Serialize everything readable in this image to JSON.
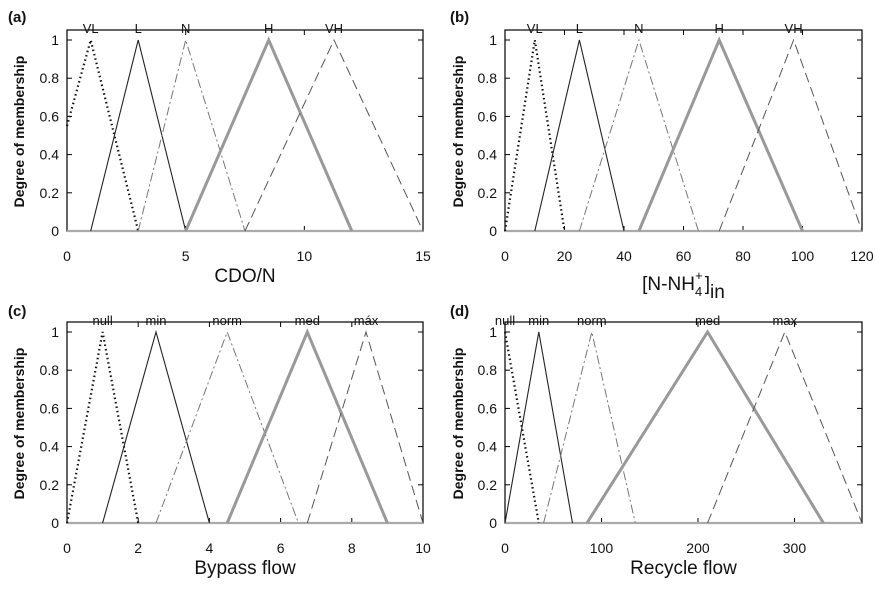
{
  "chart_data": [
    {
      "type": "line",
      "panel_label": "(a)",
      "xlabel": "CDO/N",
      "ylabel": "Degree of membership",
      "xlim": [
        0,
        15
      ],
      "ylim": [
        0,
        1
      ],
      "xticks": [
        "0",
        "5",
        "10",
        "15"
      ],
      "yticks": [
        "0",
        "0.2",
        "0.4",
        "0.6",
        "0.8",
        "1"
      ],
      "series": [
        {
          "name": "VL",
          "style": "dotted",
          "x": [
            0,
            1,
            3
          ],
          "y": [
            0.55,
            1,
            0
          ]
        },
        {
          "name": "L",
          "style": "solid-thin",
          "x": [
            1,
            3,
            5
          ],
          "y": [
            0,
            1,
            0
          ]
        },
        {
          "name": "N",
          "style": "dashdot",
          "x": [
            3,
            5,
            7.5
          ],
          "y": [
            0,
            1,
            0
          ]
        },
        {
          "name": "H",
          "style": "solid-thick",
          "x": [
            5,
            8.5,
            12
          ],
          "y": [
            0,
            1,
            0
          ]
        },
        {
          "name": "VH",
          "style": "dashed",
          "x": [
            7.5,
            11.25,
            15
          ],
          "y": [
            0,
            1,
            0
          ]
        }
      ]
    },
    {
      "type": "line",
      "panel_label": "(b)",
      "xlabel": "[N-NH4+]in",
      "xlabel_parts": {
        "main": "[N-NH",
        "sub": "4",
        "sup": "+",
        "close": "]",
        "subscript": "in"
      },
      "ylabel": "Degree of membership",
      "xlim": [
        0,
        120
      ],
      "ylim": [
        0,
        1
      ],
      "xticks": [
        "0",
        "20",
        "40",
        "60",
        "80",
        "100",
        "120"
      ],
      "yticks": [
        "0",
        "0.2",
        "0.4",
        "0.6",
        "0.8",
        "1"
      ],
      "series": [
        {
          "name": "VL",
          "style": "dotted",
          "x": [
            0,
            10,
            20
          ],
          "y": [
            0,
            1,
            0
          ]
        },
        {
          "name": "L",
          "style": "solid-thin",
          "x": [
            10,
            25,
            40
          ],
          "y": [
            0,
            1,
            0
          ]
        },
        {
          "name": "N",
          "style": "dashdot",
          "x": [
            25,
            45,
            65
          ],
          "y": [
            0,
            1,
            0
          ]
        },
        {
          "name": "H",
          "style": "solid-thick",
          "x": [
            45,
            72,
            100
          ],
          "y": [
            0,
            1,
            0
          ]
        },
        {
          "name": "VH",
          "style": "dashed",
          "x": [
            72,
            97,
            120
          ],
          "y": [
            0,
            1,
            0
          ]
        }
      ]
    },
    {
      "type": "line",
      "panel_label": "(c)",
      "xlabel": "Bypass  flow",
      "ylabel": "Degree of membership",
      "xlim": [
        0,
        10
      ],
      "ylim": [
        0,
        1
      ],
      "xticks": [
        "0",
        "2",
        "4",
        "6",
        "8",
        "10"
      ],
      "yticks": [
        "0",
        "0.2",
        "0.4",
        "0.6",
        "0.8",
        "1"
      ],
      "series": [
        {
          "name": "null",
          "style": "dotted",
          "x": [
            0,
            1,
            2
          ],
          "y": [
            0,
            1,
            0
          ]
        },
        {
          "name": "min",
          "style": "solid-thin",
          "x": [
            1,
            2.5,
            4
          ],
          "y": [
            0,
            1,
            0
          ]
        },
        {
          "name": "norm",
          "style": "dashdot",
          "x": [
            2.5,
            4.5,
            6.5
          ],
          "y": [
            0,
            1,
            0
          ]
        },
        {
          "name": "med",
          "style": "solid-thick",
          "x": [
            4.5,
            6.75,
            9
          ],
          "y": [
            0,
            1,
            0
          ]
        },
        {
          "name": "máx",
          "style": "dashed",
          "x": [
            6.75,
            8.4,
            10
          ],
          "y": [
            0,
            1,
            0
          ]
        }
      ]
    },
    {
      "type": "line",
      "panel_label": "(d)",
      "xlabel": "Recycle flow",
      "ylabel": "Degree of membership",
      "xlim": [
        0,
        370
      ],
      "ylim": [
        0,
        1
      ],
      "xticks": [
        "0",
        "100",
        "200",
        "300"
      ],
      "yticks": [
        "0",
        "0.2",
        "0.4",
        "0.6",
        "0.8",
        "1"
      ],
      "series": [
        {
          "name": "null",
          "style": "dotted",
          "x": [
            0,
            35
          ],
          "y": [
            1,
            0
          ]
        },
        {
          "name": "min",
          "style": "solid-thin",
          "x": [
            0,
            35,
            70
          ],
          "y": [
            0,
            1,
            0
          ]
        },
        {
          "name": "norm",
          "style": "dashdot",
          "x": [
            40,
            90,
            135
          ],
          "y": [
            0,
            1,
            0
          ]
        },
        {
          "name": "med",
          "style": "solid-thick",
          "x": [
            85,
            210,
            330
          ],
          "y": [
            0,
            1,
            0
          ]
        },
        {
          "name": "max",
          "style": "dashed",
          "x": [
            210,
            290,
            370
          ],
          "y": [
            0,
            1,
            0
          ]
        }
      ]
    }
  ]
}
